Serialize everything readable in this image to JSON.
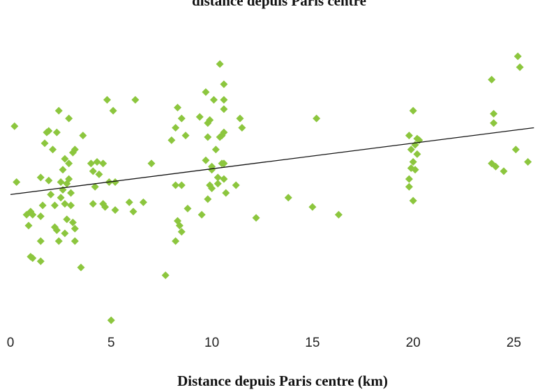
{
  "chart_data": {
    "type": "scatter",
    "title": "distance depuis Paris centre",
    "x_label": "Distance depuis Paris centre (km)",
    "color": "#8cc63e",
    "xlim": [
      -0.5,
      26.6
    ],
    "ylim": [
      0,
      2
    ],
    "xticks": [
      0,
      5,
      10,
      15,
      20,
      25
    ],
    "x": [
      0.2,
      0.3,
      0.8,
      0.9,
      1.0,
      1.1,
      1.0,
      1.1,
      1.5,
      1.5,
      1.5,
      1.6,
      1.5,
      1.7,
      1.8,
      1.9,
      1.9,
      2.0,
      2.1,
      2.2,
      2.4,
      2.3,
      2.2,
      2.3,
      2.4,
      2.5,
      2.5,
      2.6,
      2.6,
      2.7,
      2.7,
      2.7,
      2.8,
      2.8,
      2.9,
      2.9,
      2.9,
      3.0,
      3.0,
      3.1,
      3.1,
      3.2,
      3.2,
      3.2,
      3.6,
      3.5,
      4.0,
      4.1,
      4.1,
      4.2,
      4.3,
      4.4,
      4.6,
      4.6,
      4.7,
      4.8,
      4.9,
      5.0,
      5.1,
      5.2,
      5.2,
      5.9,
      6.1,
      6.2,
      6.6,
      7.0,
      7.7,
      8.0,
      8.2,
      8.2,
      8.3,
      8.2,
      8.3,
      8.4,
      8.5,
      8.5,
      8.5,
      8.7,
      8.8,
      9.4,
      9.5,
      9.7,
      9.7,
      9.8,
      9.8,
      9.8,
      9.9,
      9.9,
      10.0,
      10.0,
      10.0,
      10.1,
      10.2,
      10.3,
      10.3,
      10.4,
      10.4,
      10.5,
      10.5,
      10.6,
      10.6,
      10.6,
      10.6,
      10.6,
      10.6,
      10.7,
      11.2,
      11.4,
      11.5,
      12.2,
      13.8,
      15.0,
      15.2,
      16.3,
      19.8,
      19.8,
      19.8,
      19.9,
      19.9,
      20.0,
      20.0,
      20.0,
      20.1,
      20.1,
      20.2,
      20.2,
      20.3,
      23.9,
      23.9,
      24.0,
      24.0,
      24.1,
      24.5,
      25.1,
      25.2,
      25.3,
      25.7
    ],
    "values": [
      1.25,
      0.89,
      0.68,
      0.61,
      0.7,
      0.68,
      0.41,
      0.4,
      0.51,
      0.38,
      0.67,
      0.74,
      0.92,
      1.14,
      1.21,
      1.22,
      0.9,
      0.81,
      1.1,
      0.74,
      1.35,
      1.21,
      0.6,
      0.58,
      0.51,
      0.79,
      0.89,
      0.97,
      0.84,
      1.04,
      0.75,
      0.56,
      0.88,
      0.65,
      1.01,
      1.3,
      0.91,
      0.74,
      0.82,
      1.08,
      0.63,
      0.59,
      0.51,
      1.1,
      1.19,
      0.34,
      1.01,
      0.96,
      0.75,
      0.86,
      1.02,
      0.94,
      1.01,
      0.75,
      0.73,
      1.42,
      0.89,
      0.0,
      1.35,
      0.71,
      0.89,
      0.76,
      0.7,
      1.42,
      0.76,
      1.01,
      0.29,
      1.16,
      0.87,
      1.24,
      1.37,
      0.51,
      0.64,
      0.61,
      0.87,
      0.57,
      1.3,
      1.19,
      0.72,
      1.31,
      0.68,
      1.47,
      1.03,
      0.78,
      1.18,
      1.27,
      1.29,
      0.87,
      0.97,
      0.85,
      0.99,
      1.42,
      1.1,
      0.92,
      0.88,
      1.18,
      1.65,
      1.01,
      1.19,
      1.42,
      1.52,
      1.21,
      1.36,
      1.01,
      0.91,
      0.82,
      0.87,
      1.3,
      1.24,
      0.66,
      0.79,
      0.73,
      1.3,
      0.68,
      0.91,
      0.86,
      1.19,
      0.98,
      1.1,
      1.35,
      0.77,
      1.02,
      0.97,
      1.13,
      1.17,
      1.07,
      1.16,
      1.55,
      1.01,
      1.33,
      1.27,
      0.99,
      0.96,
      1.1,
      1.7,
      1.63,
      1.02
    ],
    "trendline": {
      "x": [
        0,
        26
      ],
      "values": [
        0.81,
        1.24
      ],
      "color": "#111111"
    }
  }
}
